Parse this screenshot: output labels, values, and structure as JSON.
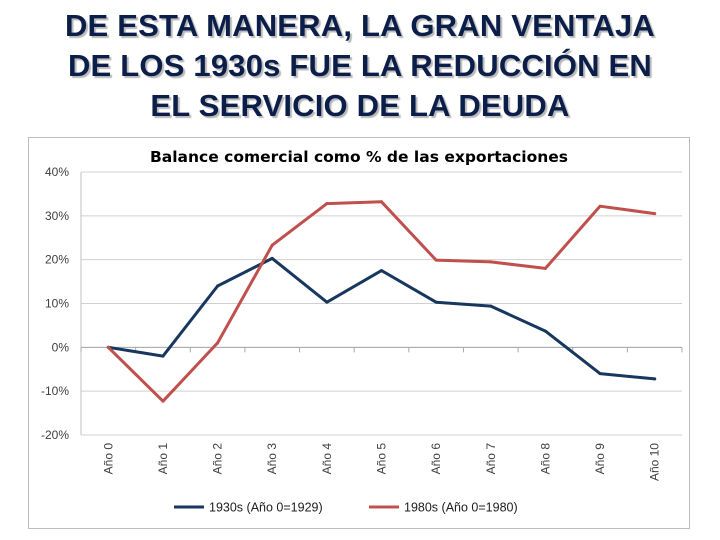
{
  "slide": {
    "title_lines": [
      "DE ESTA MANERA, LA GRAN VENTAJA",
      "DE LOS 1930s FUE LA REDUCCIÓN EN",
      "EL SERVICIO DE LA DEUDA"
    ]
  },
  "chart_data": {
    "type": "line",
    "title": "Balance comercial como % de las exportaciones",
    "categories": [
      "Año 0",
      "Año 1",
      "Año 2",
      "Año 3",
      "Año 4",
      "Año 5",
      "Año 6",
      "Año 7",
      "Año 8",
      "Año 9",
      "Año 10"
    ],
    "y_ticks": [
      -20,
      -10,
      0,
      10,
      20,
      30,
      40
    ],
    "y_tick_labels": [
      "-20%",
      "-10%",
      "0%",
      "10%",
      "20%",
      "30%",
      "40%"
    ],
    "ylim": [
      -20,
      40
    ],
    "grid": true,
    "legend_position": "bottom",
    "series": [
      {
        "name": "1930s (Año 0=1929)",
        "color": "#17375e",
        "values": [
          0,
          -2,
          14,
          20.3,
          10.3,
          17.5,
          10.3,
          9.4,
          3.7,
          -6,
          -7.2
        ]
      },
      {
        "name": "1980s (Año 0=1980)",
        "color": "#c0504d",
        "values": [
          0,
          -12.3,
          1,
          23.3,
          32.8,
          33.2,
          19.9,
          19.5,
          18,
          32.2,
          30.5
        ]
      }
    ]
  }
}
